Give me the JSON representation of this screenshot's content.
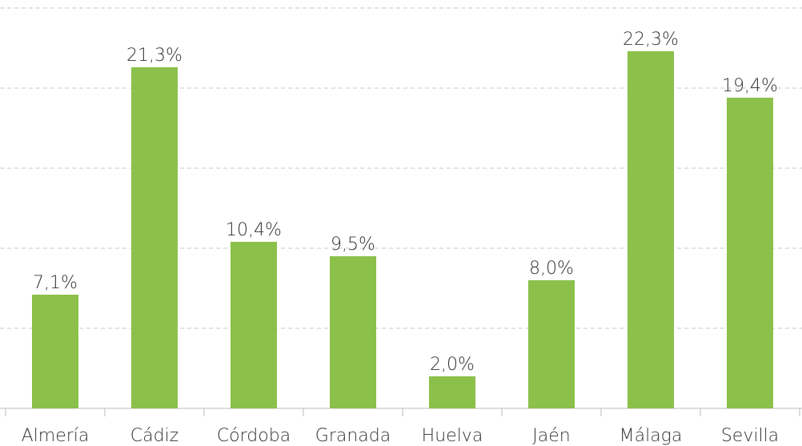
{
  "chart_data": {
    "type": "bar",
    "categories": [
      "Almería",
      "Cádiz",
      "Córdoba",
      "Granada",
      "Huelva",
      "Jaén",
      "Málaga",
      "Sevilla"
    ],
    "values": [
      7.1,
      21.3,
      10.4,
      9.5,
      2.0,
      8.0,
      22.3,
      19.4
    ],
    "value_labels": [
      "7,1%",
      "21,3%",
      "10,4%",
      "9,5%",
      "2,0%",
      "8,0%",
      "22,3%",
      "19,4%"
    ],
    "color": "#8bc04a",
    "ylim": [
      0,
      25
    ],
    "yticks": [
      0,
      5,
      10,
      15,
      20,
      25
    ],
    "grid": true
  }
}
